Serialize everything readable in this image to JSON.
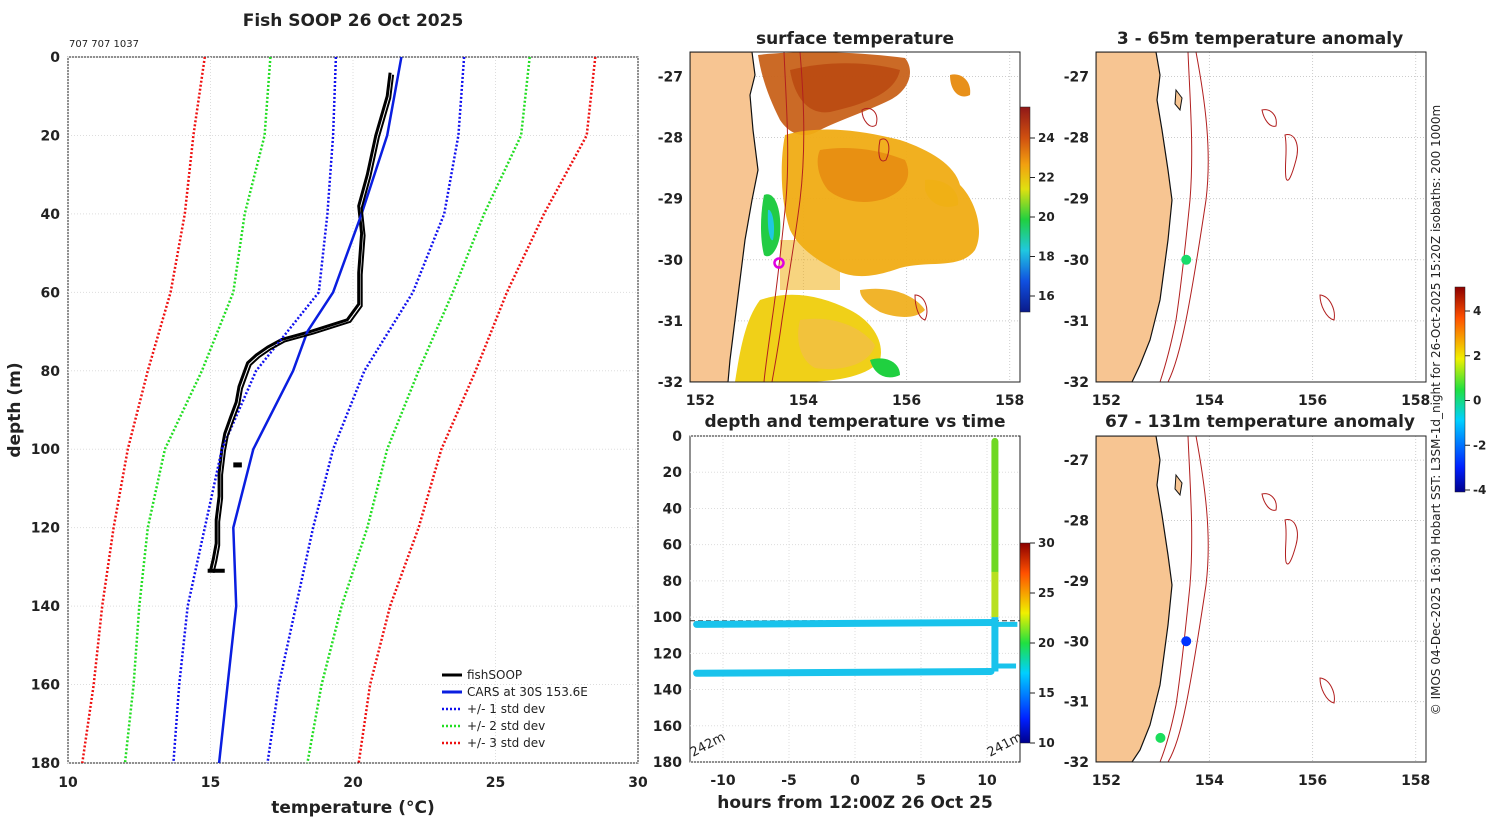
{
  "colors": {
    "land": "#f7c592",
    "isobath": "#b11f1f",
    "cars": "#0a1ee0",
    "std1": "#1010ee",
    "std2": "#22dd22",
    "std3": "#ee1010",
    "fish": "#000000",
    "trace_deep": "#19c3ec"
  },
  "profile": {
    "title": "Fish SOOP 26 Oct 2025",
    "id": "707 707 1037",
    "xlabel": "temperature (°C)",
    "ylabel": "depth (m)",
    "xticks": [
      "10",
      "15",
      "20",
      "25",
      "30"
    ],
    "yticks": [
      "0",
      "20",
      "40",
      "60",
      "80",
      "100",
      "120",
      "140",
      "160",
      "180"
    ],
    "legend": [
      "fishSOOP",
      "CARS at 30S 153.6E",
      "+/- 1 std dev",
      "+/- 2 std dev",
      "+/- 3 std dev"
    ]
  },
  "surface": {
    "title": "surface temperature",
    "xticks": [
      "152",
      "154",
      "156",
      "158"
    ],
    "yticks": [
      "-27",
      "-28",
      "-29",
      "-30",
      "-31",
      "-32"
    ],
    "cbar_ticks": [
      "24",
      "22",
      "20",
      "18",
      "16"
    ]
  },
  "anom1": {
    "title": "3 - 65m temperature anomaly",
    "xticks": [
      "152",
      "154",
      "156",
      "158"
    ],
    "yticks": [
      "-27",
      "-28",
      "-29",
      "-30",
      "-31",
      "-32"
    ]
  },
  "anom2": {
    "title": "67 - 131m temperature anomaly",
    "xticks": [
      "152",
      "154",
      "156",
      "158"
    ],
    "yticks": [
      "-27",
      "-28",
      "-29",
      "-30",
      "-31",
      "-32"
    ]
  },
  "timeplot": {
    "title": "depth and temperature vs time",
    "xlabel": "hours from 12:00Z 26 Oct 25",
    "xticks": [
      "-10",
      "-5",
      "0",
      "5",
      "10"
    ],
    "yticks": [
      "0",
      "20",
      "40",
      "60",
      "80",
      "100",
      "120",
      "140",
      "160",
      "180"
    ],
    "cbar_ticks": [
      "30",
      "25",
      "20",
      "15",
      "10"
    ],
    "label_left": "242m",
    "label_right": "241m"
  },
  "anom_cbar_ticks": [
    "4",
    "2",
    "0",
    "-2",
    "-4"
  ],
  "credit": "© IMOS 04-Dec-2025 16:30 Hobart SST: L3SM-1d_night for 26-Oct-2025 15:20Z isobaths: 200  1000m",
  "chart_data": [
    {
      "type": "line",
      "title": "Fish SOOP 26 Oct 2025",
      "xlabel": "temperature (°C)",
      "ylabel": "depth (m)",
      "xlim": [
        10,
        30
      ],
      "ylim": [
        0,
        180
      ],
      "y_reversed": true,
      "series": [
        {
          "name": "fishSOOP",
          "depth": [
            4,
            10,
            20,
            30,
            38,
            45,
            55,
            63,
            67,
            70,
            72,
            74,
            76,
            78,
            80,
            84,
            88,
            92,
            96,
            100,
            106,
            112,
            118,
            124,
            128,
            131
          ],
          "temp": [
            21.3,
            21.2,
            20.8,
            20.5,
            20.2,
            20.3,
            20.2,
            20.2,
            19.8,
            18.5,
            17.5,
            17.0,
            16.6,
            16.3,
            16.2,
            16.0,
            15.9,
            15.7,
            15.5,
            15.4,
            15.3,
            15.3,
            15.2,
            15.2,
            15.1,
            15.0
          ]
        },
        {
          "name": "CARS at 30S 153.6E",
          "depth": [
            0,
            20,
            40,
            60,
            70,
            80,
            100,
            120,
            140,
            160,
            180
          ],
          "temp": [
            21.7,
            21.2,
            20.3,
            19.3,
            18.4,
            17.9,
            16.5,
            15.8,
            15.9,
            15.6,
            15.3
          ]
        },
        {
          "name": "-1 std",
          "depth": [
            0,
            20,
            40,
            60,
            80,
            100,
            120,
            140,
            160,
            180
          ],
          "temp": [
            19.4,
            19.3,
            19.1,
            18.8,
            16.6,
            15.4,
            14.8,
            14.2,
            13.9,
            13.7
          ]
        },
        {
          "name": "+1 std",
          "depth": [
            0,
            20,
            40,
            60,
            80,
            100,
            120,
            140,
            160,
            180
          ],
          "temp": [
            23.9,
            23.7,
            23.2,
            22.1,
            20.4,
            19.3,
            18.6,
            18.0,
            17.4,
            17.0
          ]
        },
        {
          "name": "-2 std",
          "depth": [
            0,
            20,
            40,
            60,
            80,
            100,
            120,
            140,
            160,
            180
          ],
          "temp": [
            17.1,
            16.9,
            16.2,
            15.8,
            14.7,
            13.4,
            12.8,
            12.5,
            12.3,
            12.0
          ]
        },
        {
          "name": "+2 std",
          "depth": [
            0,
            20,
            40,
            60,
            80,
            100,
            120,
            140,
            160,
            180
          ],
          "temp": [
            26.2,
            25.9,
            24.6,
            23.5,
            22.3,
            21.2,
            20.5,
            19.6,
            18.9,
            18.4
          ]
        },
        {
          "name": "-3 std",
          "depth": [
            0,
            20,
            40,
            60,
            80,
            100,
            120,
            140,
            160,
            180
          ],
          "temp": [
            14.8,
            14.4,
            14.1,
            13.6,
            12.8,
            12.1,
            11.6,
            11.2,
            10.9,
            10.5
          ]
        },
        {
          "name": "+3 std",
          "depth": [
            0,
            20,
            40,
            60,
            80,
            100,
            120,
            140,
            160,
            180
          ],
          "temp": [
            28.5,
            28.2,
            26.7,
            25.4,
            24.3,
            23.1,
            22.3,
            21.3,
            20.6,
            20.2
          ]
        }
      ]
    },
    {
      "type": "scatter",
      "title": "depth and temperature vs time",
      "xlabel": "hours from 12:00Z 26 Oct 25",
      "ylabel": "",
      "xlim": [
        -12.5,
        12.5
      ],
      "ylim": [
        0,
        180
      ],
      "reference_depth": 102,
      "segments": [
        {
          "name": "upper track",
          "hours": [
            -12,
            10.5
          ],
          "depth": [
            104,
            103
          ],
          "temp": 15
        },
        {
          "name": "lower track",
          "hours": [
            -12,
            10.3
          ],
          "depth": [
            131,
            130
          ],
          "temp": 15
        },
        {
          "name": "cast",
          "hours": [
            10.6,
            10.6
          ],
          "depth": [
            3,
            130
          ],
          "temp_range": [
            21,
            15
          ]
        }
      ]
    },
    {
      "type": "heatmap",
      "title": "surface temperature",
      "xlim": [
        151.8,
        158.2
      ],
      "ylim": [
        -32,
        -26.6
      ],
      "colorbar_range": [
        15,
        25
      ],
      "vessel_position": {
        "lon": 153.6,
        "lat": -30.0
      }
    },
    {
      "type": "scatter",
      "title": "3 - 65m temperature anomaly",
      "xlim": [
        151.8,
        158.2
      ],
      "ylim": [
        -32,
        -26.6
      ],
      "colorbar_range": [
        -4,
        5
      ],
      "points": [
        {
          "lon": 153.55,
          "lat": -30.0,
          "anomaly": 0.2
        }
      ]
    },
    {
      "type": "scatter",
      "title": "67 - 131m temperature anomaly",
      "xlim": [
        151.8,
        158.2
      ],
      "ylim": [
        -32,
        -26.6
      ],
      "colorbar_range": [
        -4,
        5
      ],
      "points": [
        {
          "lon": 153.55,
          "lat": -30.0,
          "anomaly": -2.7
        },
        {
          "lon": 153.05,
          "lat": -31.6,
          "anomaly": 0.3
        }
      ]
    }
  ]
}
